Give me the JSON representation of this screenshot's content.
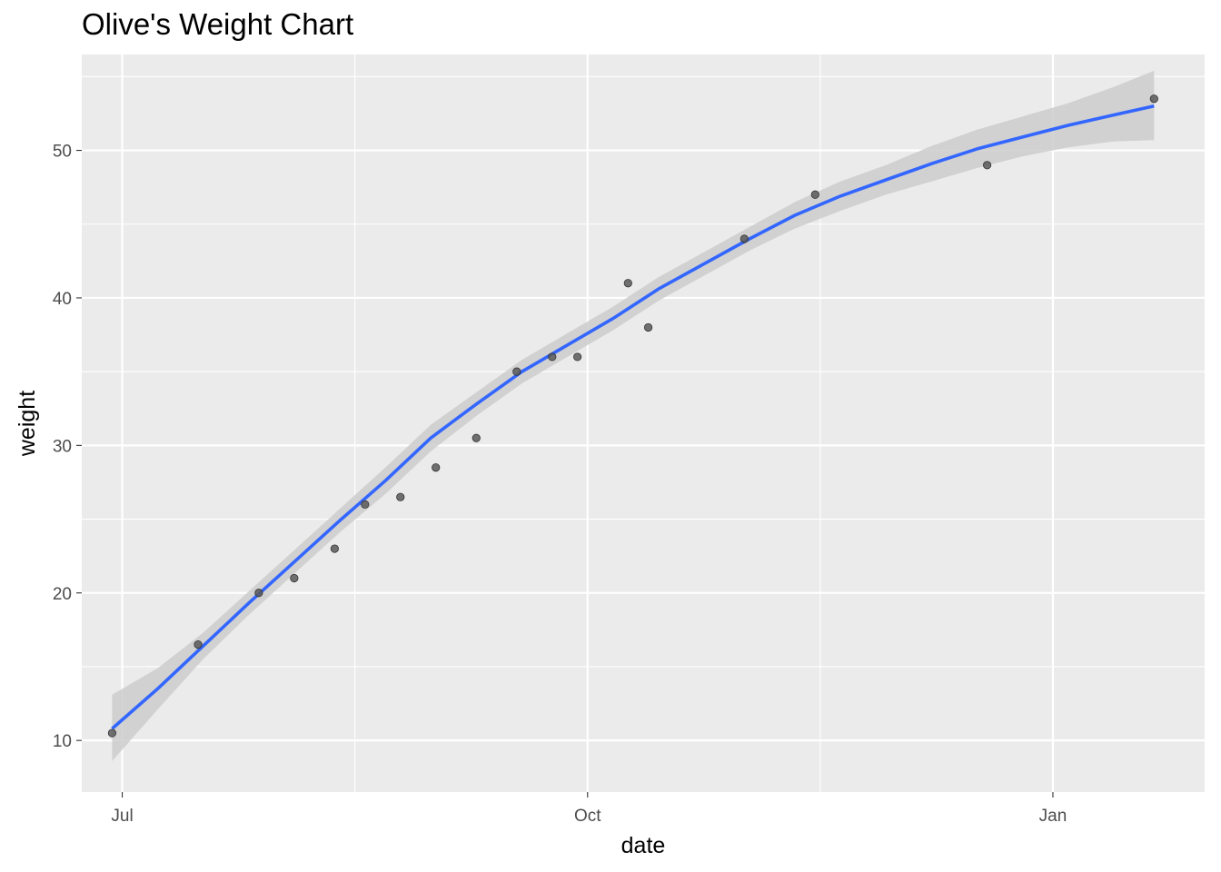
{
  "chart_data": {
    "type": "scatter",
    "title": "Olive's Weight Chart",
    "xlabel": "date",
    "ylabel": "weight",
    "x_tick_labels": [
      {
        "date": "2021-07-01",
        "label": "Jul"
      },
      {
        "date": "2021-10-01",
        "label": "Oct"
      },
      {
        "date": "2022-01-01",
        "label": "Jan"
      }
    ],
    "y_ticks": [
      10,
      20,
      30,
      40,
      50
    ],
    "xlim": [
      "2021-06-23",
      "2022-01-31"
    ],
    "ylim": [
      6.5,
      56.5
    ],
    "grid": true,
    "series": [
      {
        "type": "scatter",
        "x": [
          "2021-06-29",
          "2021-07-16",
          "2021-07-28",
          "2021-08-04",
          "2021-08-12",
          "2021-08-18",
          "2021-08-25",
          "2021-09-01",
          "2021-09-09",
          "2021-09-17",
          "2021-09-24",
          "2021-09-29",
          "2021-10-09",
          "2021-10-13",
          "2021-11-01",
          "2021-11-15",
          "2021-12-19",
          "2022-01-21"
        ],
        "y": [
          10.5,
          16.5,
          20,
          21,
          23,
          26,
          26.5,
          28.5,
          30.5,
          35,
          36,
          36,
          41,
          38,
          44,
          47,
          49,
          53.5
        ]
      },
      {
        "type": "smooth",
        "x": [
          "2021-06-29",
          "2021-07-08",
          "2021-07-17",
          "2021-07-26",
          "2021-08-04",
          "2021-08-13",
          "2021-08-22",
          "2021-08-31",
          "2021-09-09",
          "2021-09-18",
          "2021-09-27",
          "2021-10-06",
          "2021-10-15",
          "2021-10-24",
          "2021-11-02",
          "2021-11-11",
          "2021-11-20",
          "2021-11-29",
          "2021-12-08",
          "2021-12-17",
          "2021-12-26",
          "2022-01-04",
          "2022-01-13",
          "2022-01-21"
        ],
        "y": [
          10.8,
          13.5,
          16.4,
          19.3,
          22.1,
          24.9,
          27.6,
          30.5,
          32.8,
          35.0,
          36.8,
          38.6,
          40.6,
          42.3,
          44.0,
          45.6,
          46.9,
          48.0,
          49.1,
          50.1,
          50.9,
          51.7,
          52.4,
          53.0
        ],
        "ci_lower": [
          8.6,
          12.1,
          15.5,
          18.5,
          21.3,
          24.1,
          26.7,
          29.6,
          32.0,
          34.2,
          36.0,
          37.8,
          39.8,
          41.5,
          43.2,
          44.7,
          45.9,
          47.0,
          47.9,
          48.8,
          49.6,
          50.2,
          50.6,
          50.7
        ],
        "ci_upper": [
          13.1,
          14.9,
          17.3,
          20.1,
          22.9,
          25.7,
          28.5,
          31.4,
          33.6,
          35.8,
          37.6,
          39.4,
          41.4,
          43.1,
          44.8,
          46.5,
          47.9,
          49.0,
          50.3,
          51.4,
          52.3,
          53.2,
          54.3,
          55.4
        ]
      }
    ],
    "colors": {
      "panel": "#ebebeb",
      "grid": "#ffffff",
      "line": "#3366ff",
      "ribbon": "#cccccc",
      "points": "#595959"
    }
  }
}
